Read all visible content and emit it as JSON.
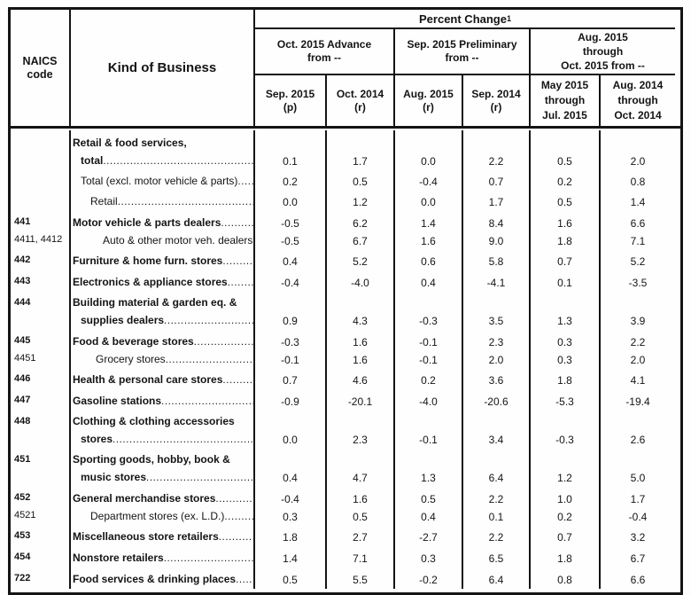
{
  "table": {
    "percent_change": {
      "text": "Percent Change",
      "sup": "1"
    },
    "corner": {
      "naics_line1": "NAICS",
      "naics_line2": "code",
      "kob": "Kind of Business"
    },
    "groups": [
      {
        "lines": [
          "Oct. 2015 Advance",
          "from --"
        ]
      },
      {
        "lines": [
          "Sep. 2015 Preliminary",
          "from --"
        ]
      },
      {
        "lines": [
          "Aug. 2015",
          "through",
          "Oct. 2015 from --"
        ]
      }
    ],
    "columns": [
      {
        "lines": [
          "Sep. 2015",
          "(p)"
        ]
      },
      {
        "lines": [
          "Oct. 2014",
          "(r)"
        ]
      },
      {
        "lines": [
          "Aug. 2015",
          "(r)"
        ]
      },
      {
        "lines": [
          "Sep. 2014",
          "(r)"
        ]
      },
      {
        "lines": [
          "May 2015",
          "through",
          "Jul. 2015"
        ]
      },
      {
        "lines": [
          "Aug. 2014",
          "through",
          "Oct. 2014"
        ]
      }
    ],
    "rows": [
      {
        "code": "",
        "code_bold": false,
        "sp": "first",
        "lines": [
          {
            "t": "Retail & food services,",
            "b": true,
            "i": 0,
            "leader": false
          },
          {
            "t": "total",
            "b": true,
            "i": 1,
            "leader": true
          }
        ],
        "values": [
          "0.1",
          "1.7",
          "0.0",
          "2.2",
          "0.5",
          "2.0"
        ]
      },
      {
        "code": "",
        "code_bold": false,
        "sp": "plain",
        "lines": [
          {
            "t": "Total (excl. motor vehicle & parts)",
            "b": false,
            "i": 1,
            "leader": true
          }
        ],
        "values": [
          "0.2",
          "0.5",
          "-0.4",
          "0.7",
          "0.2",
          "0.8"
        ]
      },
      {
        "code": "",
        "code_bold": false,
        "sp": "plain",
        "lines": [
          {
            "t": "Retail",
            "b": false,
            "i": 2,
            "leader": true
          }
        ],
        "values": [
          "0.0",
          "1.2",
          "0.0",
          "1.7",
          "0.5",
          "1.4"
        ]
      },
      {
        "code": "441",
        "code_bold": true,
        "sp": "group",
        "lines": [
          {
            "t": "Motor vehicle & parts dealers",
            "b": true,
            "i": 0,
            "leader": true
          }
        ],
        "values": [
          "-0.5",
          "6.2",
          "1.4",
          "8.4",
          "1.6",
          "6.6"
        ]
      },
      {
        "code": "4411, 4412",
        "code_bold": false,
        "sp": "tight",
        "lines": [
          {
            "t": "Auto & other motor veh. dealers",
            "b": false,
            "i": 4,
            "leader": true
          }
        ],
        "values": [
          "-0.5",
          "6.7",
          "1.6",
          "9.0",
          "1.8",
          "7.1"
        ]
      },
      {
        "code": "442",
        "code_bold": true,
        "sp": "group",
        "lines": [
          {
            "t": "Furniture & home furn. stores",
            "b": true,
            "i": 0,
            "leader": true
          }
        ],
        "values": [
          "0.4",
          "5.2",
          "0.6",
          "5.8",
          "0.7",
          "5.2"
        ]
      },
      {
        "code": "443",
        "code_bold": true,
        "sp": "group",
        "lines": [
          {
            "t": "Electronics & appliance stores",
            "b": true,
            "i": 0,
            "leader": true
          }
        ],
        "values": [
          "-0.4",
          "-4.0",
          "0.4",
          "-4.1",
          "0.1",
          "-3.5"
        ]
      },
      {
        "code": "444",
        "code_bold": true,
        "sp": "group",
        "lines": [
          {
            "t": "Building material & garden eq. &",
            "b": true,
            "i": 0,
            "leader": false
          },
          {
            "t": "supplies dealers",
            "b": true,
            "i": 1,
            "leader": true
          }
        ],
        "values": [
          "0.9",
          "4.3",
          "-0.3",
          "3.5",
          "1.3",
          "3.9"
        ]
      },
      {
        "code": "445",
        "code_bold": true,
        "sp": "group",
        "lines": [
          {
            "t": "Food & beverage stores",
            "b": true,
            "i": 0,
            "leader": true
          }
        ],
        "values": [
          "-0.3",
          "1.6",
          "-0.1",
          "2.3",
          "0.3",
          "2.2"
        ]
      },
      {
        "code": "4451",
        "code_bold": false,
        "sp": "tight",
        "lines": [
          {
            "t": "Grocery stores",
            "b": false,
            "i": 3,
            "leader": true
          }
        ],
        "values": [
          "-0.1",
          "1.6",
          "-0.1",
          "2.0",
          "0.3",
          "2.0"
        ]
      },
      {
        "code": "446",
        "code_bold": true,
        "sp": "group",
        "lines": [
          {
            "t": "Health & personal care stores",
            "b": true,
            "i": 0,
            "leader": true
          }
        ],
        "values": [
          "0.7",
          "4.6",
          "0.2",
          "3.6",
          "1.8",
          "4.1"
        ]
      },
      {
        "code": "447",
        "code_bold": true,
        "sp": "group",
        "lines": [
          {
            "t": "Gasoline stations",
            "b": true,
            "i": 0,
            "leader": true
          }
        ],
        "values": [
          "-0.9",
          "-20.1",
          "-4.0",
          "-20.6",
          "-5.3",
          "-19.4"
        ]
      },
      {
        "code": "448",
        "code_bold": true,
        "sp": "group",
        "lines": [
          {
            "t": "Clothing & clothing accessories",
            "b": true,
            "i": 0,
            "leader": false
          },
          {
            "t": "stores",
            "b": true,
            "i": 1,
            "leader": true
          }
        ],
        "values": [
          "0.0",
          "2.3",
          "-0.1",
          "3.4",
          "-0.3",
          "2.6"
        ]
      },
      {
        "code": "451",
        "code_bold": true,
        "sp": "group",
        "lines": [
          {
            "t": "Sporting goods, hobby, book &",
            "b": true,
            "i": 0,
            "leader": false
          },
          {
            "t": "music stores",
            "b": true,
            "i": 1,
            "leader": true
          }
        ],
        "values": [
          "0.4",
          "4.7",
          "1.3",
          "6.4",
          "1.2",
          "5.0"
        ]
      },
      {
        "code": "452",
        "code_bold": true,
        "sp": "group",
        "lines": [
          {
            "t": "General merchandise stores",
            "b": true,
            "i": 0,
            "leader": true
          }
        ],
        "values": [
          "-0.4",
          "1.6",
          "0.5",
          "2.2",
          "1.0",
          "1.7"
        ]
      },
      {
        "code": "4521",
        "code_bold": false,
        "sp": "tight",
        "lines": [
          {
            "t": "Department stores (ex. L.D.)",
            "b": false,
            "i": 2,
            "leader": true
          }
        ],
        "values": [
          "0.3",
          "0.5",
          "0.4",
          "0.1",
          "0.2",
          "-0.4"
        ]
      },
      {
        "code": "453",
        "code_bold": true,
        "sp": "group",
        "lines": [
          {
            "t": "Miscellaneous store retailers",
            "b": true,
            "i": 0,
            "leader": true
          }
        ],
        "values": [
          "1.8",
          "2.7",
          "-2.7",
          "2.2",
          "0.7",
          "3.2"
        ]
      },
      {
        "code": "454",
        "code_bold": true,
        "sp": "group",
        "lines": [
          {
            "t": "Nonstore retailers",
            "b": true,
            "i": 0,
            "leader": true
          }
        ],
        "values": [
          "1.4",
          "7.1",
          "0.3",
          "6.5",
          "1.8",
          "6.7"
        ]
      },
      {
        "code": "722",
        "code_bold": true,
        "sp": "group",
        "lines": [
          {
            "t": "Food services & drinking places",
            "b": true,
            "i": 0,
            "leader": true
          }
        ],
        "values": [
          "0.5",
          "5.5",
          "-0.2",
          "6.4",
          "0.8",
          "6.6"
        ]
      }
    ]
  }
}
